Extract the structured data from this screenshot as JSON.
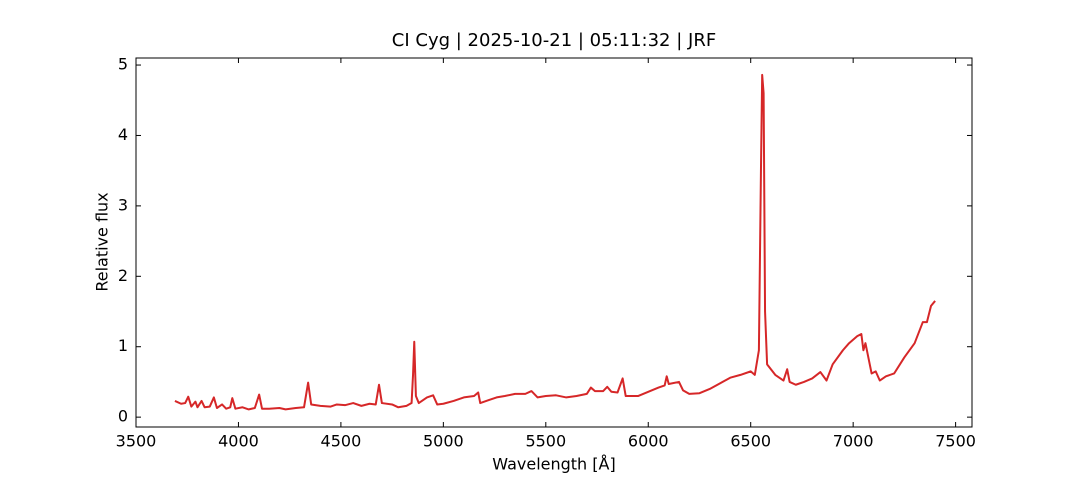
{
  "chart_data": {
    "type": "line",
    "title": "CI Cyg | 2025-10-21 | 05:11:32 | JRF",
    "x_label": "Wavelength [Å]",
    "y_label": "Relative flux",
    "xlim": [
      3500,
      7580
    ],
    "ylim": [
      -0.14,
      5.1
    ],
    "xticks": [
      3500,
      4000,
      4500,
      5000,
      5500,
      6000,
      6500,
      7000,
      7500
    ],
    "yticks": [
      0,
      1,
      2,
      3,
      4,
      5
    ],
    "grid": false,
    "series": [
      {
        "name": "CI Cyg",
        "color": "#d62728",
        "x": [
          3690,
          3720,
          3740,
          3755,
          3770,
          3790,
          3800,
          3820,
          3835,
          3860,
          3880,
          3895,
          3920,
          3940,
          3960,
          3970,
          3985,
          4020,
          4050,
          4080,
          4101,
          4115,
          4150,
          4200,
          4230,
          4280,
          4320,
          4340,
          4355,
          4400,
          4450,
          4480,
          4520,
          4560,
          4600,
          4640,
          4670,
          4686,
          4700,
          4750,
          4780,
          4820,
          4845,
          4852,
          4858,
          4866,
          4880,
          4920,
          4950,
          4970,
          5000,
          5050,
          5100,
          5150,
          5170,
          5180,
          5220,
          5260,
          5300,
          5350,
          5400,
          5430,
          5460,
          5500,
          5550,
          5600,
          5650,
          5700,
          5720,
          5740,
          5780,
          5800,
          5820,
          5850,
          5875,
          5890,
          5950,
          6000,
          6050,
          6080,
          6090,
          6100,
          6150,
          6170,
          6200,
          6250,
          6300,
          6350,
          6400,
          6450,
          6500,
          6520,
          6540,
          6550,
          6556,
          6563,
          6570,
          6580,
          6620,
          6660,
          6678,
          6690,
          6720,
          6760,
          6800,
          6840,
          6870,
          6900,
          6950,
          6980,
          7020,
          7040,
          7050,
          7060,
          7090,
          7110,
          7130,
          7160,
          7200,
          7250,
          7300,
          7340,
          7360,
          7380,
          7400
        ],
        "values": [
          0.23,
          0.19,
          0.2,
          0.29,
          0.15,
          0.22,
          0.14,
          0.23,
          0.14,
          0.15,
          0.28,
          0.13,
          0.18,
          0.12,
          0.14,
          0.27,
          0.12,
          0.14,
          0.11,
          0.13,
          0.32,
          0.12,
          0.12,
          0.13,
          0.11,
          0.13,
          0.14,
          0.49,
          0.18,
          0.16,
          0.15,
          0.18,
          0.17,
          0.2,
          0.16,
          0.19,
          0.18,
          0.46,
          0.2,
          0.18,
          0.14,
          0.16,
          0.2,
          0.6,
          1.07,
          0.3,
          0.2,
          0.28,
          0.31,
          0.18,
          0.19,
          0.23,
          0.28,
          0.3,
          0.35,
          0.2,
          0.24,
          0.28,
          0.3,
          0.33,
          0.33,
          0.37,
          0.28,
          0.3,
          0.31,
          0.28,
          0.3,
          0.33,
          0.42,
          0.37,
          0.37,
          0.43,
          0.36,
          0.35,
          0.55,
          0.3,
          0.3,
          0.36,
          0.42,
          0.45,
          0.58,
          0.47,
          0.5,
          0.38,
          0.33,
          0.34,
          0.4,
          0.48,
          0.56,
          0.6,
          0.65,
          0.6,
          0.95,
          3.5,
          4.86,
          4.6,
          1.5,
          0.75,
          0.6,
          0.52,
          0.68,
          0.5,
          0.46,
          0.5,
          0.55,
          0.64,
          0.52,
          0.75,
          0.95,
          1.05,
          1.15,
          1.18,
          0.95,
          1.05,
          0.62,
          0.65,
          0.52,
          0.58,
          0.62,
          0.85,
          1.05,
          1.35,
          1.35,
          1.58,
          1.65
        ]
      }
    ]
  }
}
